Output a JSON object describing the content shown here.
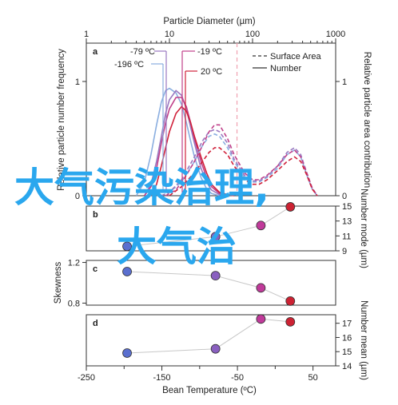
{
  "chart_data": {
    "type": "line",
    "top_axis": {
      "title": "Particle Diameter (µm)",
      "ticks": [
        1,
        10,
        100,
        1000
      ],
      "scale": "log"
    },
    "bottom_axis": {
      "title": "Bean Temperature (ºC)",
      "ticks": [
        -250,
        -150,
        -50,
        50
      ],
      "range": [
        -250,
        80
      ]
    },
    "legend": [
      {
        "label": "Surface Area",
        "dash": "dashed"
      },
      {
        "label": "Number",
        "dash": "solid"
      }
    ],
    "panels": [
      {
        "letter": "a",
        "y_left_label": "Relative particle number frequency",
        "y_right_label": "Relative particle area contribution",
        "y_ticks_left": [
          "0",
          "1"
        ],
        "y_ticks_right": [
          "0",
          "1"
        ],
        "annotations": [
          "-79 ºC",
          "-196 ºC",
          "-19 ºC",
          "20 ºC"
        ],
        "vline_particle_diameter_um": 65,
        "curves": [
          {
            "temperature": "-196 ºC",
            "color": "#8aaee0",
            "type": "number",
            "x_um": [
              4,
              5,
              6,
              7,
              8,
              9,
              10,
              12,
              14,
              16,
              18,
              20,
              24,
              28,
              32,
              40
            ],
            "y": [
              0,
              0.12,
              0.36,
              0.62,
              0.82,
              0.92,
              0.94,
              0.9,
              0.8,
              0.64,
              0.48,
              0.34,
              0.16,
              0.06,
              0.02,
              0
            ]
          },
          {
            "temperature": "-79 ºC",
            "color": "#9a78c0",
            "type": "number",
            "x_um": [
              5,
              6,
              7,
              8,
              9,
              10,
              12,
              14,
              16,
              18,
              20,
              24,
              28,
              32,
              40,
              50
            ],
            "y": [
              0,
              0.1,
              0.3,
              0.52,
              0.72,
              0.84,
              0.92,
              0.88,
              0.76,
              0.6,
              0.46,
              0.24,
              0.12,
              0.05,
              0.01,
              0
            ]
          },
          {
            "temperature": "-19 ºC",
            "color": "#c0408a",
            "type": "number",
            "x_um": [
              5,
              6,
              7,
              8,
              9,
              10,
              12,
              14,
              16,
              18,
              20,
              24,
              28,
              32,
              40,
              50
            ],
            "y": [
              0,
              0.08,
              0.24,
              0.46,
              0.64,
              0.76,
              0.86,
              0.86,
              0.78,
              0.64,
              0.5,
              0.3,
              0.16,
              0.08,
              0.02,
              0
            ]
          },
          {
            "temperature": "20 ºC",
            "color": "#d0203a",
            "type": "number",
            "x_um": [
              6,
              7,
              8,
              9,
              10,
              12,
              14,
              16,
              18,
              20,
              24,
              28,
              32,
              40,
              50,
              60
            ],
            "y": [
              0,
              0.1,
              0.26,
              0.42,
              0.56,
              0.72,
              0.78,
              0.74,
              0.64,
              0.52,
              0.34,
              0.2,
              0.1,
              0.03,
              0.01,
              0
            ]
          },
          {
            "temperature": "-196 ºC",
            "color": "#8aaee0",
            "type": "surface",
            "x_um": [
              8,
              10,
              14,
              20,
              25,
              30,
              35,
              40,
              50,
              60,
              80,
              100,
              120,
              150,
              200,
              260,
              320,
              380,
              450,
              520,
              600
            ],
            "y": [
              0,
              0.03,
              0.12,
              0.3,
              0.44,
              0.52,
              0.54,
              0.52,
              0.42,
              0.3,
              0.16,
              0.12,
              0.12,
              0.16,
              0.24,
              0.36,
              0.4,
              0.34,
              0.18,
              0.06,
              0
            ]
          },
          {
            "temperature": "-79 ºC",
            "color": "#9a78c0",
            "type": "surface",
            "x_um": [
              8,
              10,
              14,
              20,
              25,
              30,
              35,
              40,
              50,
              60,
              80,
              100,
              120,
              150,
              200,
              260,
              320,
              380,
              450,
              520,
              600
            ],
            "y": [
              0,
              0.03,
              0.14,
              0.34,
              0.48,
              0.56,
              0.58,
              0.56,
              0.46,
              0.32,
              0.18,
              0.13,
              0.13,
              0.17,
              0.26,
              0.38,
              0.42,
              0.36,
              0.2,
              0.07,
              0
            ]
          },
          {
            "temperature": "-19 ºC",
            "color": "#c0408a",
            "type": "surface",
            "x_um": [
              9,
              12,
              16,
              20,
              25,
              30,
              35,
              40,
              50,
              60,
              80,
              100,
              120,
              150,
              200,
              260,
              320,
              380,
              450,
              520,
              600
            ],
            "y": [
              0,
              0.05,
              0.18,
              0.3,
              0.44,
              0.56,
              0.62,
              0.62,
              0.5,
              0.36,
              0.2,
              0.14,
              0.14,
              0.18,
              0.26,
              0.36,
              0.4,
              0.34,
              0.2,
              0.07,
              0
            ]
          },
          {
            "temperature": "20 ºC",
            "color": "#d0203a",
            "type": "surface",
            "x_um": [
              10,
              14,
              20,
              25,
              30,
              35,
              40,
              50,
              60,
              80,
              100,
              120,
              150,
              200,
              260,
              320,
              380,
              450,
              520,
              600
            ],
            "y": [
              0,
              0.08,
              0.2,
              0.3,
              0.38,
              0.42,
              0.42,
              0.36,
              0.26,
              0.14,
              0.1,
              0.1,
              0.14,
              0.22,
              0.3,
              0.34,
              0.3,
              0.18,
              0.06,
              0
            ]
          }
        ]
      },
      {
        "letter": "b",
        "y_right_label": "Number mode (µm)",
        "y_ticks": [
          "9",
          "11",
          "13",
          "15"
        ],
        "ylim": [
          9,
          15
        ],
        "points": [
          {
            "temperature": -196,
            "value": 9.6,
            "color": "#5a6fcf"
          },
          {
            "temperature": -79,
            "value": 10.9,
            "color": "#8a60c0"
          },
          {
            "temperature": -19,
            "value": 12.4,
            "color": "#c03a9a"
          },
          {
            "temperature": 20,
            "value": 14.9,
            "color": "#cc2233"
          }
        ]
      },
      {
        "letter": "c",
        "y_left_label": "Skewness",
        "y_ticks": [
          "0.8",
          "1.2"
        ],
        "ylim": [
          0.78,
          1.22
        ],
        "points": [
          {
            "temperature": -196,
            "value": 1.11,
            "color": "#5a6fcf"
          },
          {
            "temperature": -79,
            "value": 1.07,
            "color": "#8a60c0"
          },
          {
            "temperature": -19,
            "value": 0.95,
            "color": "#c03a9a"
          },
          {
            "temperature": 20,
            "value": 0.82,
            "color": "#cc2233"
          }
        ]
      },
      {
        "letter": "d",
        "y_right_label": "Number mean (µm)",
        "y_ticks": [
          "14",
          "15",
          "16",
          "17"
        ],
        "ylim": [
          14,
          17.6
        ],
        "points": [
          {
            "temperature": -196,
            "value": 14.9,
            "color": "#5a6fcf"
          },
          {
            "temperature": -79,
            "value": 15.2,
            "color": "#8a60c0"
          },
          {
            "temperature": -19,
            "value": 17.3,
            "color": "#c03a9a"
          },
          {
            "temperature": 20,
            "value": 17.1,
            "color": "#cc2233"
          }
        ]
      }
    ]
  },
  "overlay": {
    "line1": "大气污染治理,",
    "line2": "大气治"
  }
}
